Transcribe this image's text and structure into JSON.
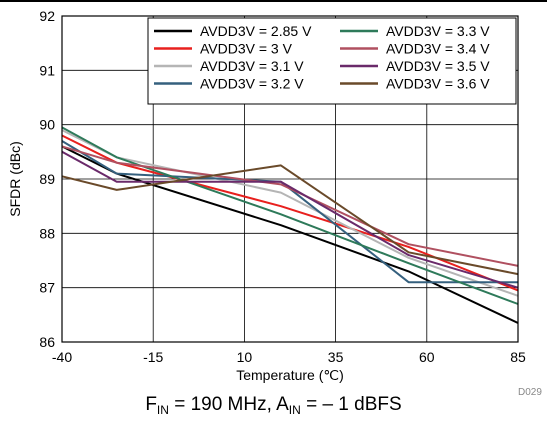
{
  "chart_data": {
    "type": "line",
    "title": "",
    "xlabel": "Temperature (℃)",
    "ylabel": "SFDR (dBc)",
    "xlim": [
      -40,
      85
    ],
    "ylim": [
      86,
      92
    ],
    "xticks": [
      -40,
      -15,
      10,
      35,
      60,
      85
    ],
    "yticks": [
      86,
      87,
      88,
      89,
      90,
      91,
      92
    ],
    "x": [
      -40,
      -25,
      20,
      55,
      85
    ],
    "grid": true,
    "legend_position": "top-right",
    "legend_columns": 2,
    "series": [
      {
        "name": "AVDD3V = 2.85 V",
        "color": "#000000",
        "values": [
          89.6,
          89.1,
          88.15,
          87.3,
          86.35
        ]
      },
      {
        "name": "AVDD3V = 3 V",
        "color": "#e8201e",
        "values": [
          89.8,
          89.3,
          88.5,
          87.75,
          86.95
        ]
      },
      {
        "name": "AVDD3V = 3.1 V",
        "color": "#b5b5b5",
        "values": [
          89.9,
          89.4,
          88.75,
          87.55,
          86.85
        ]
      },
      {
        "name": "AVDD3V = 3.2 V",
        "color": "#35607e",
        "values": [
          89.7,
          89.1,
          88.95,
          87.1,
          87.1
        ]
      },
      {
        "name": "AVDD3V = 3.3 V",
        "color": "#2e7a5a",
        "values": [
          89.95,
          89.4,
          88.35,
          87.45,
          86.7
        ]
      },
      {
        "name": "AVDD3V = 3.4 V",
        "color": "#b05060",
        "values": [
          89.6,
          89.3,
          88.9,
          87.8,
          87.4
        ]
      },
      {
        "name": "AVDD3V = 3.5 V",
        "color": "#6a2a6a",
        "values": [
          89.5,
          88.95,
          88.95,
          87.6,
          87.0
        ]
      },
      {
        "name": "AVDD3V = 3.6 V",
        "color": "#6a4a2a",
        "values": [
          89.05,
          88.8,
          89.25,
          87.65,
          87.25
        ]
      }
    ]
  },
  "figure": {
    "code_label": "D029",
    "caption": {
      "f_main": "F",
      "f_sub": "IN",
      "f_text": " = 190 MHz, A",
      "a_sub": "IN",
      "a_text": " = – 1 dBFS"
    }
  }
}
